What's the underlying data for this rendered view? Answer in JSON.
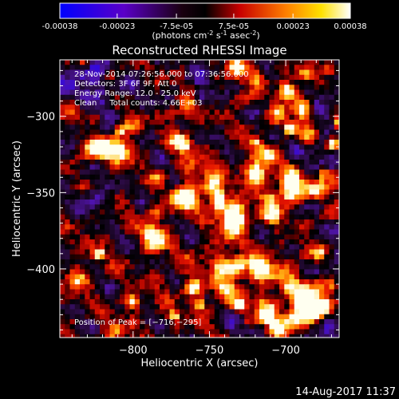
{
  "colorbar": {
    "ticks": [
      "-0.00038",
      "-0.00023",
      "-7.5e-05",
      "7.5e-05",
      "0.00023",
      "0.00038"
    ],
    "tick_values": [
      -0.00038,
      -0.00023,
      -7.5e-05,
      7.5e-05,
      0.00023,
      0.00038
    ],
    "range": [
      -0.00038,
      0.00038
    ],
    "unit_label": "(photons cm",
    "unit_exp1": "-2",
    "unit_mid": " s",
    "unit_exp2": "-1",
    "unit_end": " asec",
    "unit_exp3": "-2",
    "unit_close": ")"
  },
  "chart_data": {
    "type": "heatmap",
    "title": "Reconstructed RHESSI Image",
    "xlabel": "Heliocentric X (arcsec)",
    "ylabel": "Heliocentric Y (arcsec)",
    "xlim": [
      -848,
      -665
    ],
    "ylim": [
      -445,
      -263
    ],
    "x_ticks": [
      -800,
      -750,
      -700
    ],
    "x_tick_labels": [
      "−800",
      "−750",
      "−700"
    ],
    "y_ticks": [
      -300,
      -350,
      -400
    ],
    "y_tick_labels": [
      "−300",
      "−350",
      "−400"
    ],
    "peak": {
      "x": -716,
      "y": -295
    },
    "info_lines": [
      "28-Nov-2014 07:26:56.000 to 07:36:56.000",
      "Detectors: 3F 6F 9F, Att 0",
      "Energy Range: 12.0 - 25.0 keV",
      "Clean     Total counts: 4.66E+03"
    ],
    "peak_label": "Position of Peak = [−716,−295]",
    "colors": {
      "low": "#1a00ff",
      "mid": "#000000",
      "high": "#ffffff"
    }
  },
  "footer": {
    "timestamp": "14-Aug-2017 11:37"
  }
}
